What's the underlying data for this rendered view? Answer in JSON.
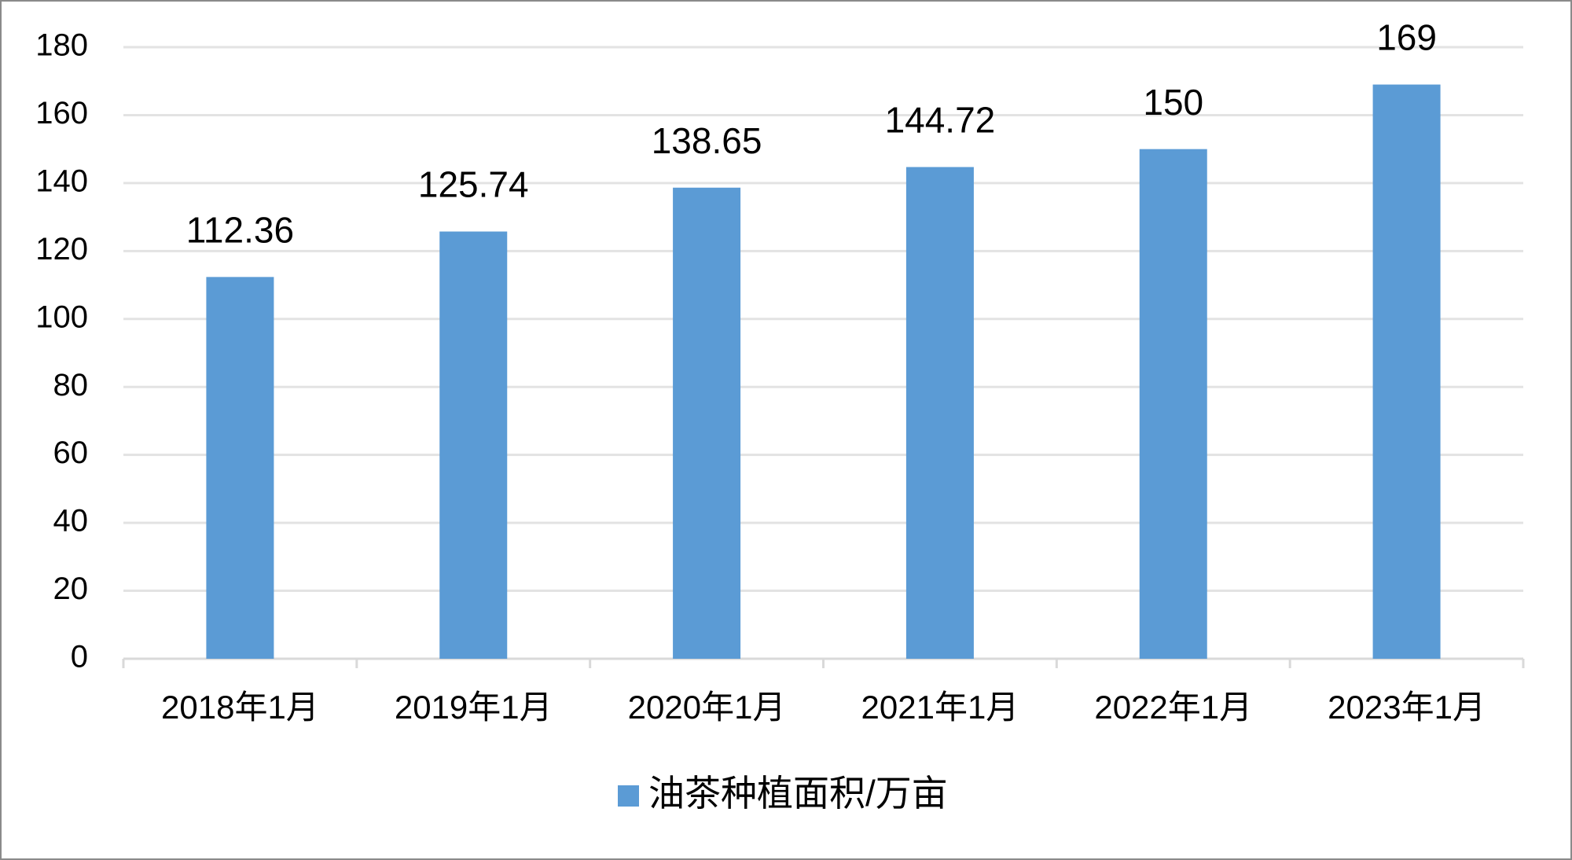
{
  "chart_data": {
    "type": "bar",
    "categories": [
      "2018年1月",
      "2019年1月",
      "2020年1月",
      "2021年1月",
      "2022年1月",
      "2023年1月"
    ],
    "series": [
      {
        "name": "油茶种植面积/万亩",
        "color": "#5b9bd5",
        "values": [
          112.36,
          125.74,
          138.65,
          144.72,
          150,
          169
        ]
      }
    ],
    "ylim": [
      0,
      180
    ],
    "yticks": [
      0,
      20,
      40,
      60,
      80,
      100,
      120,
      140,
      160,
      180
    ],
    "grid": true,
    "legend": "bottom"
  }
}
